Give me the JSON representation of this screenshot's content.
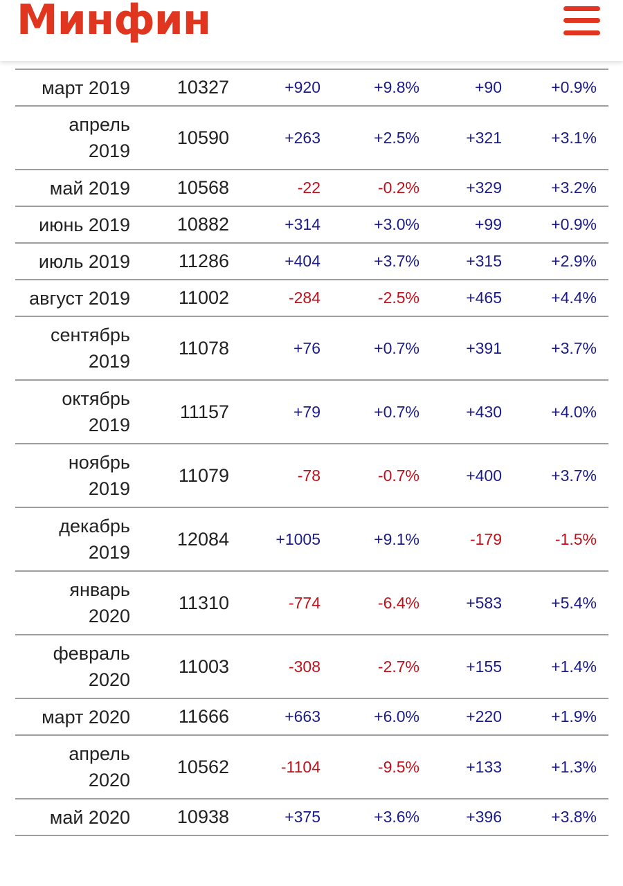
{
  "header": {
    "logo": "Минфин",
    "menu_icon": "hamburger-menu-icon",
    "brand_color": "#e0351f"
  },
  "table": {
    "colors": {
      "positive": "#1b1b8a",
      "negative": "#c0101a"
    },
    "rows": [
      {
        "period": "март 2019",
        "value": "10327",
        "d1": "+920",
        "d2": "+9.8%",
        "d3": "+90",
        "d4": "+0.9%"
      },
      {
        "period": "апрель 2019",
        "value": "10590",
        "d1": "+263",
        "d2": "+2.5%",
        "d3": "+321",
        "d4": "+3.1%"
      },
      {
        "period": "май 2019",
        "value": "10568",
        "d1": "-22",
        "d2": "-0.2%",
        "d3": "+329",
        "d4": "+3.2%"
      },
      {
        "period": "июнь 2019",
        "value": "10882",
        "d1": "+314",
        "d2": "+3.0%",
        "d3": "+99",
        "d4": "+0.9%"
      },
      {
        "period": "июль 2019",
        "value": "11286",
        "d1": "+404",
        "d2": "+3.7%",
        "d3": "+315",
        "d4": "+2.9%"
      },
      {
        "period": "август 2019",
        "value": "11002",
        "d1": "-284",
        "d2": "-2.5%",
        "d3": "+465",
        "d4": "+4.4%"
      },
      {
        "period": "сентябрь 2019",
        "value": "11078",
        "d1": "+76",
        "d2": "+0.7%",
        "d3": "+391",
        "d4": "+3.7%"
      },
      {
        "period": "октябрь 2019",
        "value": "11157",
        "d1": "+79",
        "d2": "+0.7%",
        "d3": "+430",
        "d4": "+4.0%"
      },
      {
        "period": "ноябрь 2019",
        "value": "11079",
        "d1": "-78",
        "d2": "-0.7%",
        "d3": "+400",
        "d4": "+3.7%"
      },
      {
        "period": "декабрь 2019",
        "value": "12084",
        "d1": "+1005",
        "d2": "+9.1%",
        "d3": "-179",
        "d4": "-1.5%"
      },
      {
        "period": "январь 2020",
        "value": "11310",
        "d1": "-774",
        "d2": "-6.4%",
        "d3": "+583",
        "d4": "+5.4%"
      },
      {
        "period": "февраль 2020",
        "value": "11003",
        "d1": "-308",
        "d2": "-2.7%",
        "d3": "+155",
        "d4": "+1.4%"
      },
      {
        "period": "март 2020",
        "value": "11666",
        "d1": "+663",
        "d2": "+6.0%",
        "d3": "+220",
        "d4": "+1.9%"
      },
      {
        "period": "апрель 2020",
        "value": "10562",
        "d1": "-1104",
        "d2": "-9.5%",
        "d3": "+133",
        "d4": "+1.3%"
      },
      {
        "period": "май 2020",
        "value": "10938",
        "d1": "+375",
        "d2": "+3.6%",
        "d3": "+396",
        "d4": "+3.8%"
      }
    ]
  }
}
